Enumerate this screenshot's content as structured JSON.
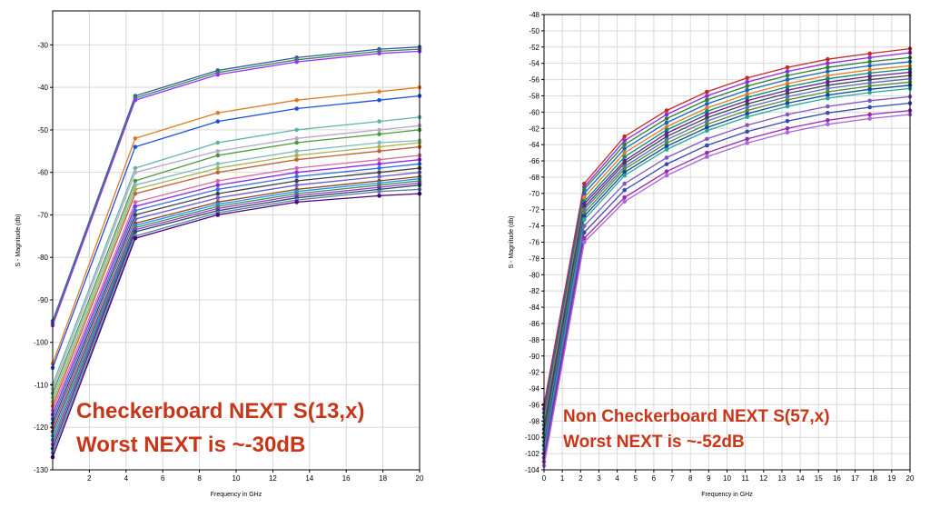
{
  "chart_data": [
    {
      "type": "line",
      "title": "",
      "xlabel": "Frequency in GHz",
      "ylabel": "S - Magnitude (db)",
      "xlim": [
        0,
        20
      ],
      "ylim": [
        -130,
        -22
      ],
      "xticks": [
        2,
        4,
        6,
        8,
        10,
        12,
        14,
        16,
        18,
        20
      ],
      "yticks": [
        -30,
        -40,
        -50,
        -60,
        -70,
        -80,
        -90,
        -100,
        -110,
        -120,
        -130
      ],
      "x": [
        0,
        4.5,
        9,
        13.3,
        17.8,
        20
      ],
      "grid": true,
      "annotation_line1": "Checkerboard NEXT S(13,x)",
      "annotation_line2": "Worst NEXT is ~-30dB",
      "series": [
        {
          "color": "#3b5998",
          "values": [
            -95,
            -42,
            -36,
            -33,
            -31,
            -30.5
          ]
        },
        {
          "color": "#2e8b57",
          "values": [
            -95.5,
            -42.5,
            -36.5,
            -33.5,
            -31.5,
            -31
          ]
        },
        {
          "color": "#9b30ff",
          "values": [
            -96,
            -43,
            -37,
            -34,
            -32,
            -31.5
          ]
        },
        {
          "color": "#e07b20",
          "values": [
            -105,
            -52,
            -46,
            -43,
            -41,
            -40
          ]
        },
        {
          "color": "#1f4fd8",
          "values": [
            -106,
            -54,
            -48,
            -45,
            -43,
            -42
          ]
        },
        {
          "color": "#5fb3a8",
          "values": [
            -110,
            -59,
            -53,
            -50,
            -48,
            -47
          ]
        },
        {
          "color": "#b8a7c9",
          "values": [
            -111,
            -60,
            -55,
            -52,
            -50,
            -49
          ]
        },
        {
          "color": "#4a9a3a",
          "values": [
            -112,
            -62,
            -56,
            -53,
            -51,
            -50
          ]
        },
        {
          "color": "#7fb8c0",
          "values": [
            -113,
            -63,
            -58,
            -55,
            -53,
            -52.5
          ]
        },
        {
          "color": "#a9b04a",
          "values": [
            -114,
            -64,
            -59,
            -56,
            -54,
            -53
          ]
        },
        {
          "color": "#c0603a",
          "values": [
            -115,
            -65,
            -60,
            -57,
            -55,
            -54
          ]
        },
        {
          "color": "#d66aa0",
          "values": [
            -116,
            -67,
            -62,
            -59,
            -57,
            -56
          ]
        },
        {
          "color": "#8a2be2",
          "values": [
            -117,
            -68,
            -63,
            -60,
            -58,
            -57
          ]
        },
        {
          "color": "#2f6fdc",
          "values": [
            -118,
            -69,
            -64,
            -61,
            -59,
            -58
          ]
        },
        {
          "color": "#404040",
          "values": [
            -119,
            -70,
            -65,
            -62,
            -60,
            -59
          ]
        },
        {
          "color": "#6a5acd",
          "values": [
            -120,
            -71,
            -66,
            -63,
            -61,
            -60
          ]
        },
        {
          "color": "#8b4513",
          "values": [
            -121,
            -72,
            -67,
            -64,
            -62,
            -61
          ]
        },
        {
          "color": "#1e90ff",
          "values": [
            -122,
            -72.5,
            -67.5,
            -64.5,
            -62.5,
            -61.5
          ]
        },
        {
          "color": "#3c8d5a",
          "values": [
            -123,
            -73,
            -68,
            -65,
            -63,
            -62
          ]
        },
        {
          "color": "#9932cc",
          "values": [
            -124,
            -73.5,
            -68.5,
            -65.5,
            -63.5,
            -62.5
          ]
        },
        {
          "color": "#2a4a6a",
          "values": [
            -125,
            -74,
            -69,
            -66,
            -64,
            -63
          ]
        },
        {
          "color": "#5a7fa0",
          "values": [
            -126,
            -75,
            -69.5,
            -66.5,
            -64.5,
            -64
          ]
        },
        {
          "color": "#4b0082",
          "values": [
            -127,
            -75.5,
            -70,
            -67,
            -65.5,
            -65
          ]
        }
      ]
    },
    {
      "type": "line",
      "title": "",
      "xlabel": "Frequency in GHz",
      "ylabel": "S - Magnitude (db)",
      "xlim": [
        0,
        20
      ],
      "ylim": [
        -104,
        -48
      ],
      "xticks": [
        0,
        1,
        2,
        3,
        4,
        5,
        6,
        7,
        8,
        9,
        10,
        11,
        12,
        13,
        14,
        15,
        16,
        17,
        18,
        19,
        20
      ],
      "yticks": [
        -48,
        -50,
        -52,
        -54,
        -56,
        -58,
        -60,
        -62,
        -64,
        -66,
        -68,
        -70,
        -72,
        -74,
        -76,
        -78,
        -80,
        -82,
        -84,
        -86,
        -88,
        -90,
        -92,
        -94,
        -96,
        -98,
        -100,
        -102,
        -104
      ],
      "x": [
        0,
        2.2,
        4.4,
        6.7,
        8.9,
        11.1,
        13.3,
        15.5,
        17.8,
        20
      ],
      "grid": true,
      "annotation_line1": "Non Checkerboard NEXT S(57,x)",
      "annotation_line2": "Worst NEXT is ~-52dB",
      "series": [
        {
          "color": "#c62828",
          "values": [
            -96,
            -68.8,
            -63,
            -59.8,
            -57.5,
            -55.8,
            -54.5,
            -53.5,
            -52.8,
            -52.2
          ]
        },
        {
          "color": "#8a2be2",
          "values": [
            -96.5,
            -69.2,
            -63.5,
            -60.3,
            -58,
            -56.3,
            -55,
            -54,
            -53.3,
            -52.7
          ]
        },
        {
          "color": "#2e7d32",
          "values": [
            -97,
            -69.5,
            -64,
            -60.8,
            -58.5,
            -56.8,
            -55.5,
            -54.5,
            -53.8,
            -53.3
          ]
        },
        {
          "color": "#1565c0",
          "values": [
            -97.5,
            -70,
            -64.5,
            -61.3,
            -59,
            -57.3,
            -56,
            -55,
            -54.3,
            -53.8
          ]
        },
        {
          "color": "#e07b20",
          "values": [
            -98,
            -70.5,
            -65,
            -61.8,
            -59.5,
            -57.8,
            -56.5,
            -55.5,
            -54.8,
            -54.3
          ]
        },
        {
          "color": "#00897b",
          "values": [
            -98.5,
            -71,
            -65.5,
            -62.2,
            -59.9,
            -58.2,
            -56.9,
            -55.9,
            -55.2,
            -54.7
          ]
        },
        {
          "color": "#6a1b9a",
          "values": [
            -99,
            -71.3,
            -66,
            -62.6,
            -60.3,
            -58.6,
            -57.3,
            -56.3,
            -55.6,
            -55.1
          ]
        },
        {
          "color": "#37474f",
          "values": [
            -99.5,
            -71.7,
            -66.3,
            -63,
            -60.7,
            -59,
            -57.7,
            -56.7,
            -56,
            -55.5
          ]
        },
        {
          "color": "#5c6bc0",
          "values": [
            -100,
            -72,
            -66.7,
            -63.4,
            -61.1,
            -59.4,
            -58.1,
            -57.1,
            -56.4,
            -55.9
          ]
        },
        {
          "color": "#558b2f",
          "values": [
            -100.5,
            -72.4,
            -67,
            -63.8,
            -61.5,
            -59.8,
            -58.5,
            -57.5,
            -56.8,
            -56.3
          ]
        },
        {
          "color": "#0d47a1",
          "values": [
            -101,
            -72.8,
            -67.4,
            -64.2,
            -61.9,
            -60.2,
            -58.9,
            -57.9,
            -57.2,
            -56.7
          ]
        },
        {
          "color": "#26a69a",
          "values": [
            -101.5,
            -73.2,
            -67.8,
            -64.6,
            -62.3,
            -60.6,
            -59.3,
            -58.3,
            -57.6,
            -57.1
          ]
        },
        {
          "color": "#7e57c2",
          "values": [
            -102,
            -74,
            -68.8,
            -65.6,
            -63.3,
            -61.6,
            -60.3,
            -59.3,
            -58.6,
            -58.1
          ]
        },
        {
          "color": "#3949ab",
          "values": [
            -102.5,
            -74.8,
            -69.6,
            -66.4,
            -64.1,
            -62.4,
            -61.1,
            -60.1,
            -59.4,
            -58.9
          ]
        },
        {
          "color": "#9c27b0",
          "values": [
            -103,
            -75.5,
            -70.5,
            -67.3,
            -65,
            -63.3,
            -62,
            -61,
            -60.3,
            -59.8
          ]
        },
        {
          "color": "#aa66dd",
          "values": [
            -103.5,
            -76,
            -71,
            -67.8,
            -65.5,
            -63.8,
            -62.5,
            -61.5,
            -60.8,
            -60.3
          ]
        }
      ]
    }
  ]
}
